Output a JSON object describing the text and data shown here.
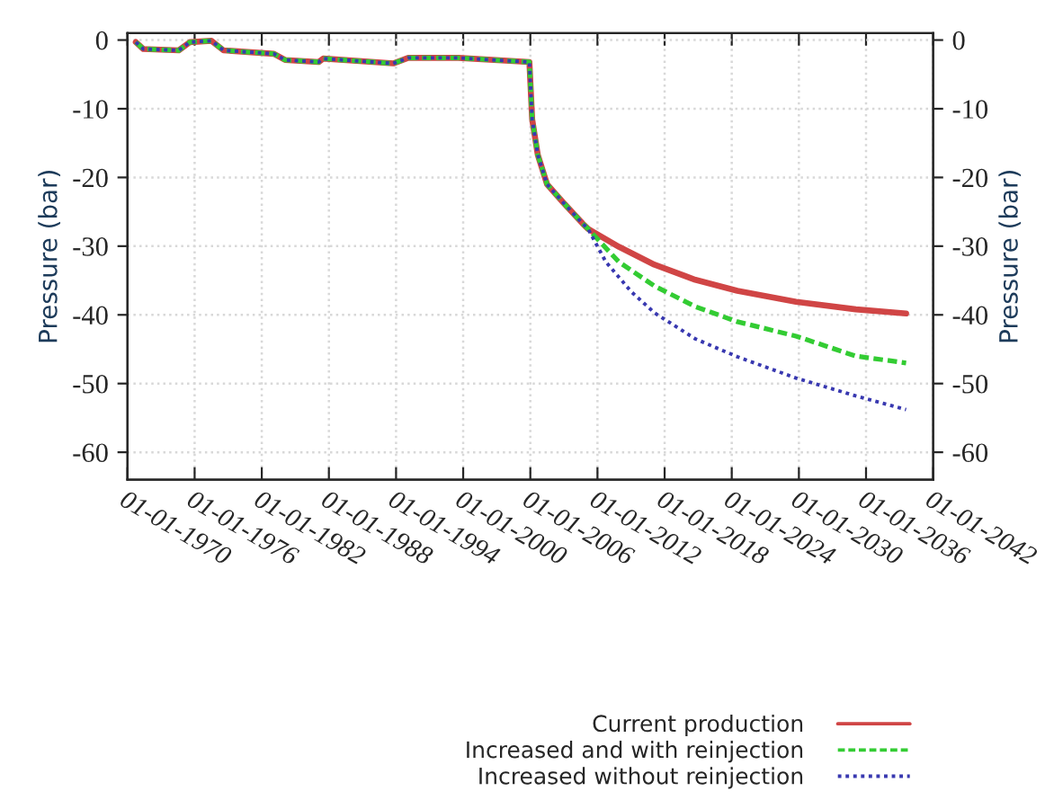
{
  "chart_data": {
    "type": "line",
    "ylabel": "Pressure (bar)",
    "y2label": "Pressure (bar)",
    "xlim": [
      "1970-01-01",
      "2042-01-01"
    ],
    "xticks": [
      {
        "value": "1970-01-01",
        "label": "01-01-1970"
      },
      {
        "value": "1976-01-01",
        "label": "01-01-1976"
      },
      {
        "value": "1982-01-01",
        "label": "01-01-1982"
      },
      {
        "value": "1988-01-01",
        "label": "01-01-1988"
      },
      {
        "value": "1994-01-01",
        "label": "01-01-1994"
      },
      {
        "value": "2000-01-01",
        "label": "01-01-2000"
      },
      {
        "value": "2006-01-01",
        "label": "01-01-2006"
      },
      {
        "value": "2012-01-01",
        "label": "01-01-2012"
      },
      {
        "value": "2018-01-01",
        "label": "01-01-2018"
      },
      {
        "value": "2024-01-01",
        "label": "01-01-2024"
      },
      {
        "value": "2030-01-01",
        "label": "01-01-2030"
      },
      {
        "value": "2036-01-01",
        "label": "01-01-2036"
      },
      {
        "value": "2042-01-01",
        "label": "01-01-2042"
      }
    ],
    "ylim": [
      -64,
      1
    ],
    "yticks": [
      0,
      -10,
      -20,
      -30,
      -40,
      -50,
      -60
    ],
    "y2lim": [
      -64,
      1
    ],
    "y2ticks": [
      0,
      -10,
      -20,
      -30,
      -40,
      -50,
      -60
    ],
    "grid": true,
    "legend": "bottom",
    "series": [
      {
        "name": "Current production",
        "color": "#d04545",
        "line_style": "solid",
        "x": [
          "1970-10",
          "1971-06",
          "1974-08",
          "1975-08",
          "1977-07",
          "1978-08",
          "1983-02",
          "1984-02",
          "1987-02",
          "1987-07",
          "1993-10",
          "1995-02",
          "1999-08",
          "2005-12",
          "2006-03",
          "2006-09",
          "2007-07",
          "2008-12",
          "2010-09",
          "2011-03",
          "2013-12",
          "2017-02",
          "2020-10",
          "2024-07",
          "2029-10",
          "2035-02",
          "2039-08"
        ],
        "values": [
          -0.3,
          -1.3,
          -1.5,
          -0.3,
          -0.1,
          -1.5,
          -2.0,
          -2.9,
          -3.2,
          -2.7,
          -3.4,
          -2.6,
          -2.6,
          -3.2,
          -11.5,
          -16.7,
          -21.0,
          -23.6,
          -26.7,
          -27.5,
          -30.1,
          -32.7,
          -34.9,
          -36.5,
          -38.1,
          -39.2,
          -39.8
        ]
      },
      {
        "name": "Increased and with reinjection",
        "color": "#33cc33",
        "line_style": "dashed",
        "x": [
          "1970-10",
          "1971-06",
          "1974-08",
          "1975-08",
          "1977-07",
          "1978-08",
          "1983-02",
          "1984-02",
          "1987-02",
          "1987-07",
          "1993-10",
          "1995-02",
          "1999-08",
          "2005-12",
          "2006-03",
          "2006-09",
          "2007-07",
          "2008-12",
          "2010-09",
          "2011-03",
          "2013-12",
          "2017-02",
          "2020-10",
          "2024-07",
          "2029-10",
          "2035-02",
          "2039-08"
        ],
        "values": [
          -0.3,
          -1.3,
          -1.5,
          -0.3,
          -0.1,
          -1.5,
          -2.0,
          -2.9,
          -3.2,
          -2.7,
          -3.4,
          -2.6,
          -2.6,
          -3.2,
          -11.5,
          -16.7,
          -21.0,
          -23.6,
          -26.7,
          -27.5,
          -32.3,
          -35.8,
          -38.8,
          -41.0,
          -43.1,
          -46.0,
          -47.0
        ]
      },
      {
        "name": "Increased without reinjection",
        "color": "#3838b0",
        "line_style": "dotted",
        "x": [
          "1970-10",
          "1971-06",
          "1974-08",
          "1975-08",
          "1977-07",
          "1978-08",
          "1983-02",
          "1984-02",
          "1987-02",
          "1987-07",
          "1993-10",
          "1995-02",
          "1999-08",
          "2005-12",
          "2006-03",
          "2006-09",
          "2007-07",
          "2008-12",
          "2010-09",
          "2011-03",
          "2012-10",
          "2015-01",
          "2017-02",
          "2020-10",
          "2024-07",
          "2029-10",
          "2035-02",
          "2039-08"
        ],
        "values": [
          -0.3,
          -1.3,
          -1.5,
          -0.3,
          -0.1,
          -1.5,
          -2.0,
          -2.9,
          -3.2,
          -2.7,
          -3.4,
          -2.6,
          -2.6,
          -3.2,
          -11.5,
          -16.7,
          -21.0,
          -23.6,
          -26.7,
          -27.5,
          -32.3,
          -36.6,
          -39.7,
          -43.5,
          -46.1,
          -49.2,
          -51.8,
          -53.8
        ]
      }
    ]
  }
}
